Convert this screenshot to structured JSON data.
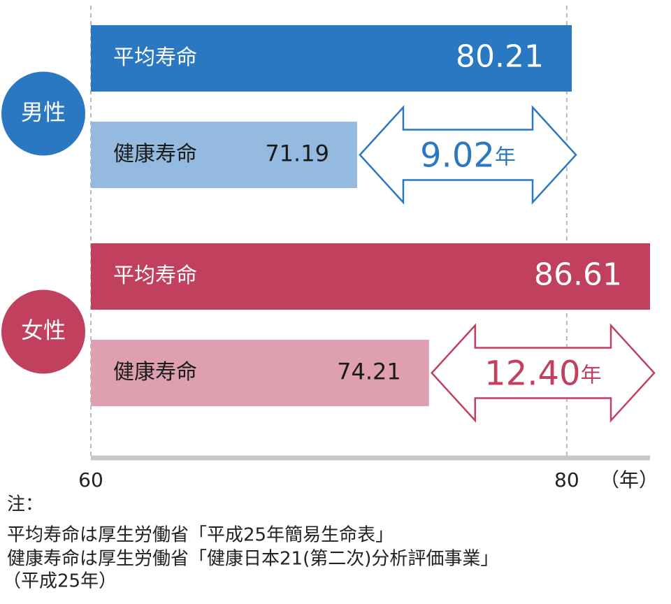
{
  "chart_data": {
    "type": "bar",
    "groups": [
      {
        "name": "男性",
        "color": "#2b78c2",
        "categories": [
          "平均寿命",
          "健康寿命"
        ],
        "values": [
          80.21,
          71.19
        ],
        "colors": [
          "#2b78c2",
          "#94badf"
        ],
        "difference": 9.02,
        "difference_label": "9.02"
      },
      {
        "name": "女性",
        "color": "#c0405e",
        "categories": [
          "平均寿命",
          "健康寿命"
        ],
        "values": [
          86.61,
          74.21
        ],
        "colors": [
          "#c0405e",
          "#dea0b0"
        ],
        "difference": 12.4,
        "difference_label": "12.40"
      }
    ],
    "difference_unit": "年",
    "xlim": [
      60,
      83.5
    ],
    "xticks": [
      60,
      80
    ],
    "x_unit_label": "（年）",
    "grid": true,
    "notes": [
      "注：",
      "平均寿命は厚生労働省「平成25年簡易生命表」",
      "健康寿命は厚生労働省「健康日本21(第二次)分析評価事業」",
      "（平成25年）"
    ]
  }
}
